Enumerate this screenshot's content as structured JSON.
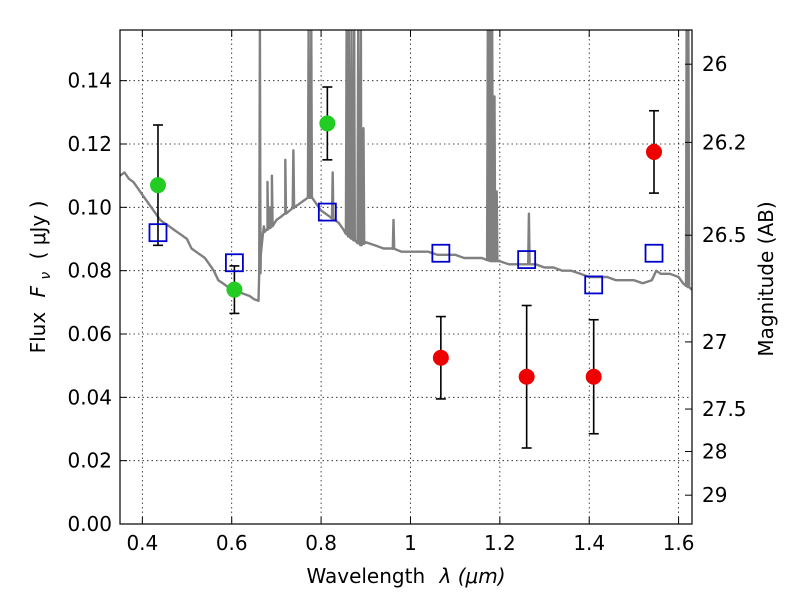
{
  "chart_data": {
    "type": "scatter",
    "xlabel_prefix": "Wavelength",
    "xlabel_math": "λ (μm)",
    "ylabel_prefix": "Flux",
    "ylabel_math": "F",
    "ylabel_sub": "ν",
    "ylabel_unit": "( μJy )",
    "y2label": "Magnitude (AB)",
    "xlim": [
      0.35,
      1.63
    ],
    "ylim": [
      0.0,
      0.156
    ],
    "xticks": [
      0.4,
      0.6,
      0.8,
      1.0,
      1.2,
      1.4,
      1.6
    ],
    "xtick_labels": [
      "0.4",
      "0.6",
      "0.8",
      "1",
      "1.2",
      "1.4",
      "1.6"
    ],
    "yticks": [
      0.0,
      0.02,
      0.04,
      0.06,
      0.08,
      0.1,
      0.12,
      0.14
    ],
    "ytick_labels": [
      "0.00",
      "0.02",
      "0.04",
      "0.06",
      "0.08",
      "0.10",
      "0.12",
      "0.14"
    ],
    "y2ticks": [
      {
        "flux": 0.1452,
        "label": "26"
      },
      {
        "flux": 0.1205,
        "label": "26.2"
      },
      {
        "flux": 0.0912,
        "label": "26.5"
      },
      {
        "flux": 0.0575,
        "label": "27"
      },
      {
        "flux": 0.0363,
        "label": "27.5"
      },
      {
        "flux": 0.0229,
        "label": "28"
      },
      {
        "flux": 0.0091,
        "label": "29"
      }
    ],
    "grid": true,
    "colors": {
      "green": "#22cc22",
      "red": "#ee0000",
      "blue": "#0000cc",
      "sed": "#808080",
      "errorbar": "#000000"
    },
    "series": [
      {
        "marker": "circle",
        "color": "green",
        "points": [
          {
            "x": 0.435,
            "y": 0.107,
            "err": 0.019
          },
          {
            "x": 0.606,
            "y": 0.074,
            "err": 0.0075
          },
          {
            "x": 0.814,
            "y": 0.1265,
            "err": 0.0115
          }
        ]
      },
      {
        "marker": "circle",
        "color": "red",
        "points": [
          {
            "x": 1.068,
            "y": 0.0525,
            "err": 0.013
          },
          {
            "x": 1.26,
            "y": 0.0465,
            "err": 0.0225
          },
          {
            "x": 1.41,
            "y": 0.0465,
            "err": 0.018
          },
          {
            "x": 1.545,
            "y": 0.1175,
            "err": 0.013
          }
        ]
      },
      {
        "marker": "open-square",
        "color": "blue",
        "points": [
          {
            "x": 0.435,
            "y": 0.092
          },
          {
            "x": 0.606,
            "y": 0.0825
          },
          {
            "x": 0.814,
            "y": 0.0985
          },
          {
            "x": 1.068,
            "y": 0.0855
          },
          {
            "x": 1.26,
            "y": 0.0835
          },
          {
            "x": 1.41,
            "y": 0.0755
          },
          {
            "x": 1.545,
            "y": 0.0855
          }
        ]
      }
    ],
    "sed_curve": [
      [
        0.35,
        0.11
      ],
      [
        0.36,
        0.111
      ],
      [
        0.37,
        0.109
      ],
      [
        0.38,
        0.108
      ],
      [
        0.39,
        0.106
      ],
      [
        0.4,
        0.104
      ],
      [
        0.41,
        0.102
      ],
      [
        0.42,
        0.1
      ],
      [
        0.43,
        0.098
      ],
      [
        0.44,
        0.096
      ],
      [
        0.45,
        0.095
      ],
      [
        0.46,
        0.094
      ],
      [
        0.47,
        0.093
      ],
      [
        0.48,
        0.092
      ],
      [
        0.49,
        0.091
      ],
      [
        0.5,
        0.09
      ],
      [
        0.51,
        0.087
      ],
      [
        0.52,
        0.086
      ],
      [
        0.53,
        0.085
      ],
      [
        0.54,
        0.084
      ],
      [
        0.55,
        0.082
      ],
      [
        0.56,
        0.08
      ],
      [
        0.57,
        0.077
      ],
      [
        0.58,
        0.076
      ],
      [
        0.59,
        0.075
      ],
      [
        0.6,
        0.074
      ],
      [
        0.62,
        0.073
      ],
      [
        0.64,
        0.072
      ],
      [
        0.65,
        0.071
      ],
      [
        0.66,
        0.0705
      ],
      [
        0.665,
        0.085
      ],
      [
        0.67,
        0.092
      ],
      [
        0.68,
        0.093
      ],
      [
        0.69,
        0.094
      ],
      [
        0.7,
        0.096
      ],
      [
        0.71,
        0.097
      ],
      [
        0.72,
        0.098
      ],
      [
        0.73,
        0.099
      ],
      [
        0.74,
        0.1
      ],
      [
        0.75,
        0.101
      ],
      [
        0.76,
        0.102
      ],
      [
        0.77,
        0.103
      ],
      [
        0.78,
        0.103
      ],
      [
        0.79,
        0.101
      ],
      [
        0.8,
        0.099
      ],
      [
        0.82,
        0.097
      ],
      [
        0.84,
        0.095
      ],
      [
        0.85,
        0.093
      ],
      [
        0.86,
        0.091
      ],
      [
        0.87,
        0.09
      ],
      [
        0.88,
        0.089
      ],
      [
        0.89,
        0.088
      ],
      [
        0.9,
        0.089
      ],
      [
        0.92,
        0.088
      ],
      [
        0.94,
        0.087
      ],
      [
        0.96,
        0.087
      ],
      [
        0.98,
        0.086
      ],
      [
        1.0,
        0.086
      ],
      [
        1.02,
        0.086
      ],
      [
        1.04,
        0.086
      ],
      [
        1.06,
        0.085
      ],
      [
        1.08,
        0.085
      ],
      [
        1.1,
        0.085
      ],
      [
        1.12,
        0.084
      ],
      [
        1.14,
        0.084
      ],
      [
        1.16,
        0.084
      ],
      [
        1.18,
        0.083
      ],
      [
        1.2,
        0.083
      ],
      [
        1.22,
        0.082
      ],
      [
        1.24,
        0.082
      ],
      [
        1.26,
        0.082
      ],
      [
        1.28,
        0.082
      ],
      [
        1.3,
        0.081
      ],
      [
        1.32,
        0.081
      ],
      [
        1.34,
        0.08
      ],
      [
        1.36,
        0.08
      ],
      [
        1.38,
        0.079
      ],
      [
        1.4,
        0.078
      ],
      [
        1.42,
        0.078
      ],
      [
        1.44,
        0.078
      ],
      [
        1.46,
        0.077
      ],
      [
        1.48,
        0.077
      ],
      [
        1.5,
        0.077
      ],
      [
        1.52,
        0.076
      ],
      [
        1.54,
        0.077
      ],
      [
        1.55,
        0.08
      ],
      [
        1.56,
        0.079
      ],
      [
        1.58,
        0.079
      ],
      [
        1.6,
        0.078
      ],
      [
        1.61,
        0.076
      ],
      [
        1.62,
        0.075
      ],
      [
        1.63,
        0.074
      ]
    ],
    "sed_spikes": [
      [
        0.663,
        0.156
      ],
      [
        0.672,
        0.094
      ],
      [
        0.68,
        0.108
      ],
      [
        0.685,
        0.1
      ],
      [
        0.69,
        0.11
      ],
      [
        0.72,
        0.115
      ],
      [
        0.738,
        0.118
      ],
      [
        0.772,
        0.156
      ],
      [
        0.778,
        0.156
      ],
      [
        0.826,
        0.111
      ],
      [
        0.857,
        0.156
      ],
      [
        0.862,
        0.156
      ],
      [
        0.868,
        0.156
      ],
      [
        0.874,
        0.156
      ],
      [
        0.883,
        0.156
      ],
      [
        0.889,
        0.156
      ],
      [
        0.895,
        0.125
      ],
      [
        0.962,
        0.096
      ],
      [
        1.173,
        0.156
      ],
      [
        1.178,
        0.156
      ],
      [
        1.183,
        0.156
      ],
      [
        1.188,
        0.135
      ],
      [
        1.193,
        0.105
      ],
      [
        1.265,
        0.098
      ],
      [
        1.618,
        0.156
      ],
      [
        1.622,
        0.156
      ]
    ]
  }
}
